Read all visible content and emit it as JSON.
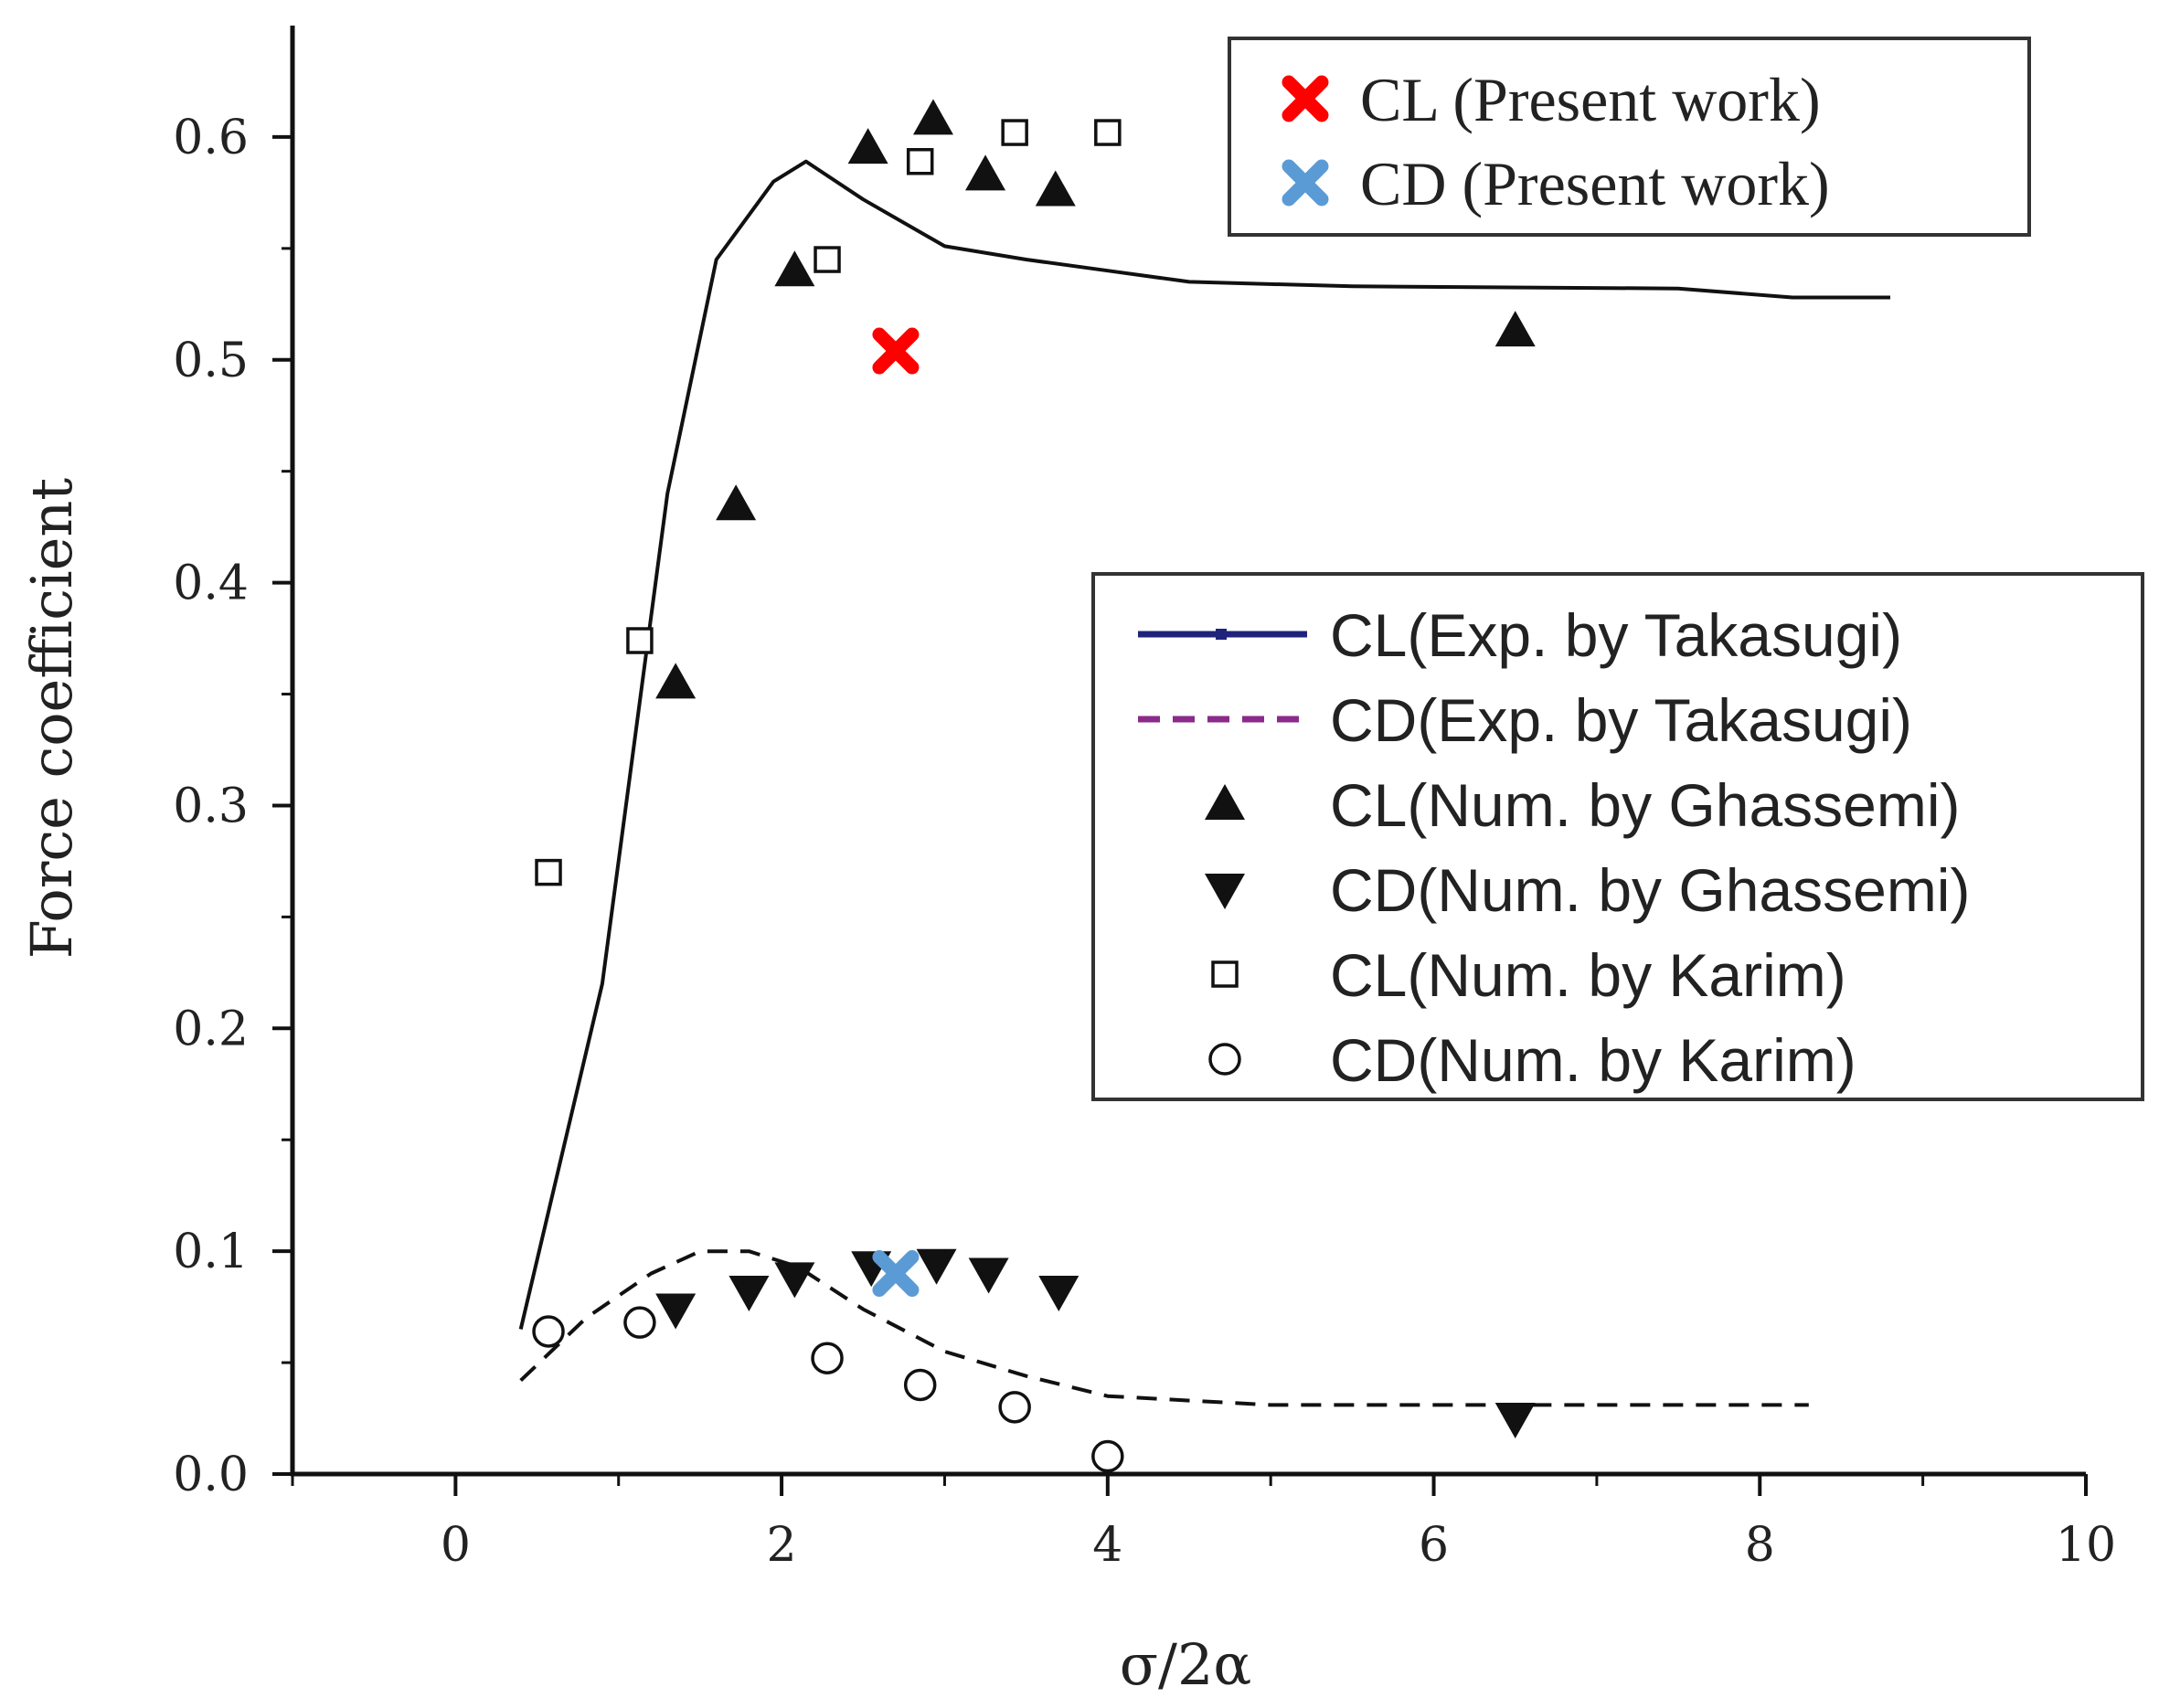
{
  "chart_data": {
    "type": "scatter",
    "title": "",
    "xlabel": "σ/2α",
    "ylabel": "Force coefficient",
    "xlim": [
      -1,
      10
    ],
    "ylim": [
      0,
      0.65
    ],
    "x_ticks": [
      0,
      2,
      4,
      6,
      8,
      10
    ],
    "x_tick_labels": [
      "0",
      "2",
      "4",
      "6",
      "8",
      "10"
    ],
    "y_ticks": [
      0.0,
      0.1,
      0.2,
      0.3,
      0.4,
      0.5,
      0.6
    ],
    "y_tick_labels": [
      "0.0",
      "0.1",
      "0.2",
      "0.3",
      "0.4",
      "0.5",
      "0.6"
    ],
    "grid": false,
    "series": [
      {
        "name": "CL(Exp. by Takasugi)",
        "kind": "line",
        "style": "solid",
        "color": "#111111",
        "legend_color": "#1f237a",
        "x": [
          0.4,
          0.9,
          1.3,
          1.6,
          1.95,
          2.15,
          2.5,
          3.0,
          3.5,
          4.0,
          4.5,
          5.5,
          7.5,
          8.2,
          8.8
        ],
        "y": [
          0.065,
          0.22,
          0.44,
          0.545,
          0.58,
          0.589,
          0.572,
          0.551,
          0.545,
          0.54,
          0.535,
          0.533,
          0.532,
          0.528,
          0.528
        ]
      },
      {
        "name": "CD(Exp. by Takasugi)",
        "kind": "line",
        "style": "dashed",
        "color": "#111111",
        "legend_color": "#8a2a8a",
        "x": [
          0.4,
          0.8,
          1.2,
          1.5,
          1.8,
          2.1,
          2.5,
          3.0,
          3.5,
          4.0,
          5.0,
          6.0,
          7.0,
          8.3
        ],
        "y": [
          0.042,
          0.07,
          0.09,
          0.1,
          0.1,
          0.093,
          0.074,
          0.055,
          0.044,
          0.035,
          0.031,
          0.031,
          0.031,
          0.031
        ]
      },
      {
        "name": "CL(Num. by Ghassemi)",
        "kind": "scatter",
        "marker": "triangle-up",
        "x": [
          1.35,
          1.72,
          2.08,
          2.53,
          2.93,
          3.25,
          3.68,
          6.5
        ],
        "y": [
          0.355,
          0.435,
          0.54,
          0.595,
          0.608,
          0.583,
          0.576,
          0.513
        ]
      },
      {
        "name": "CD(Num. by Ghassemi)",
        "kind": "scatter",
        "marker": "triangle-down",
        "x": [
          1.35,
          1.8,
          2.08,
          2.55,
          2.95,
          3.27,
          3.7,
          6.5
        ],
        "y": [
          0.074,
          0.082,
          0.088,
          0.093,
          0.094,
          0.09,
          0.082,
          0.025
        ]
      },
      {
        "name": "CL(Num. by Karim)",
        "kind": "scatter",
        "marker": "square-open",
        "x": [
          0.57,
          1.13,
          2.28,
          2.85,
          3.43,
          4.0
        ],
        "y": [
          0.27,
          0.374,
          0.545,
          0.589,
          0.602,
          0.602
        ]
      },
      {
        "name": "CD(Num. by Karim)",
        "kind": "scatter",
        "marker": "circle-open",
        "x": [
          0.57,
          1.13,
          2.28,
          2.85,
          3.43,
          4.0
        ],
        "y": [
          0.064,
          0.068,
          0.052,
          0.04,
          0.03,
          0.008
        ]
      },
      {
        "name": "CL (Present work)",
        "kind": "scatter",
        "marker": "x",
        "color": "#ff0000",
        "x": [
          2.7
        ],
        "y": [
          0.504
        ]
      },
      {
        "name": "CD (Present work)",
        "kind": "scatter",
        "marker": "x",
        "color": "#5b9bd5",
        "x": [
          2.7
        ],
        "y": [
          0.09
        ]
      }
    ],
    "legends": [
      {
        "position": "top-right",
        "entries": [
          "CL (Present work)",
          "CD (Present work)"
        ]
      },
      {
        "position": "center-right",
        "entries": [
          "CL(Exp. by Takasugi)",
          "CD(Exp. by Takasugi)",
          "CL(Num. by Ghassemi)",
          "CD(Num. by Ghassemi)",
          "CL(Num. by Karim)",
          "CD(Num. by Karim)"
        ]
      }
    ]
  }
}
